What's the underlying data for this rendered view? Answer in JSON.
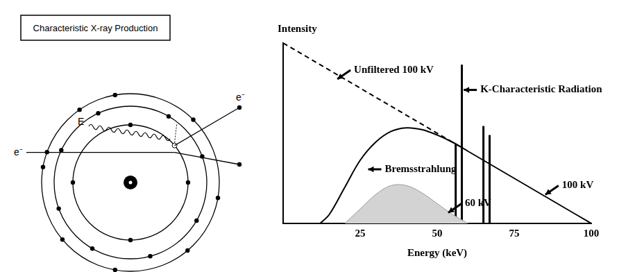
{
  "diagram": {
    "title": "Characteristic X-ray Production",
    "photon_label": "E",
    "incident_electron_label": "e⁻",
    "ejected_electron_label": "e⁻"
  },
  "chart_data": {
    "type": "line",
    "xlabel": "Energy (keV)",
    "ylabel": "Intensity",
    "xlim": [
      0,
      100
    ],
    "xticks": [
      25,
      50,
      75,
      100
    ],
    "ylim": [
      0,
      100
    ],
    "yticks": [],
    "tick_labels": "x",
    "grid": false,
    "annotations": [
      "Unfiltered 100 kV",
      "K-Characteristic Radiation",
      "Bremsstrahlung",
      "60 kV",
      "100 kV"
    ],
    "series": [
      {
        "type": "line",
        "color": "#000000",
        "line_style": "dashed",
        "x": [
          0,
          57
        ],
        "values": [
          100,
          43
        ]
      },
      {
        "type": "line",
        "color": "#000000",
        "line_style": "solid",
        "x": [
          12,
          15,
          20,
          25,
          30,
          35,
          40,
          45,
          50,
          55,
          60,
          70,
          80,
          90,
          100
        ],
        "values": [
          0,
          5,
          20,
          35,
          45,
          51,
          53,
          52,
          49,
          45,
          40,
          30,
          20,
          10,
          0
        ]
      },
      {
        "type": "area",
        "color": "#d3d3d3",
        "line_style": "solid",
        "x": [
          20,
          25,
          30,
          35,
          40,
          45,
          50,
          55,
          60
        ],
        "values": [
          0,
          8,
          16,
          21,
          21,
          17,
          11,
          5,
          0
        ]
      },
      {
        "type": "stem",
        "color": "#000000",
        "line_style": "solid",
        "x": [
          56,
          58,
          65,
          67
        ],
        "values": [
          44,
          88,
          54,
          49
        ]
      }
    ]
  }
}
